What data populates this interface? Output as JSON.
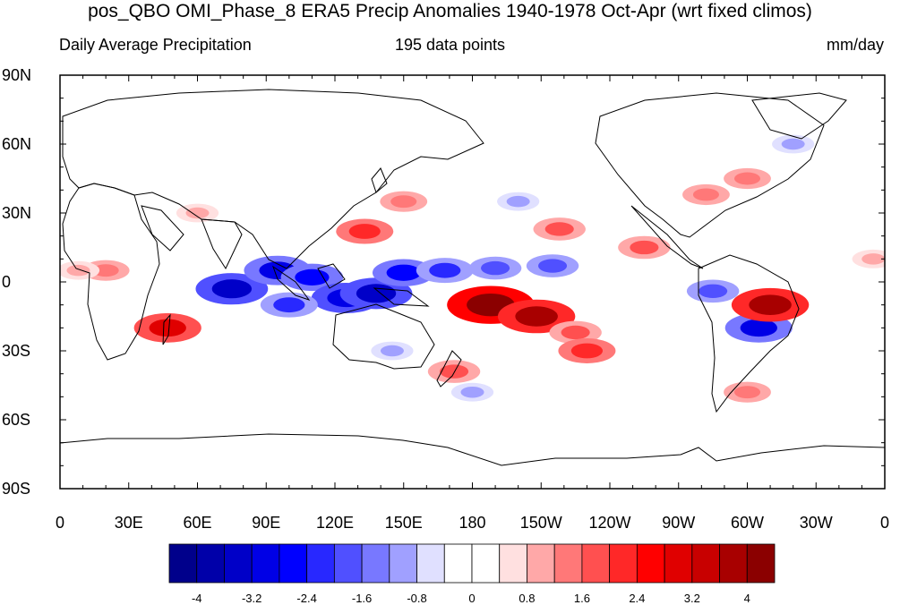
{
  "title": "pos_QBO OMI_Phase_8 ERA5 Precip Anomalies 1940-1978 Oct-Apr (wrt fixed climos)",
  "subtitle_left": "Daily Average Precipitation",
  "subtitle_center": "195 data points",
  "subtitle_right": "mm/day",
  "lat_labels": [
    "90N",
    "60N",
    "30N",
    "0",
    "30S",
    "60S",
    "90S"
  ],
  "lon_labels": [
    "0",
    "30E",
    "60E",
    "90E",
    "120E",
    "150E",
    "180",
    "150W",
    "120W",
    "90W",
    "60W",
    "30W",
    "0"
  ],
  "colorbar": {
    "colors": [
      "#00008b",
      "#0000a9",
      "#0000c8",
      "#0000e6",
      "#0000ff",
      "#2828ff",
      "#5050ff",
      "#7878ff",
      "#a0a0ff",
      "#e0e0ff",
      "#ffffff",
      "#ffffff",
      "#ffe0e0",
      "#ffa8a8",
      "#ff7878",
      "#ff5050",
      "#ff2828",
      "#ff0000",
      "#e00000",
      "#c80000",
      "#a80000",
      "#8b0000"
    ],
    "tick_labels": [
      "-4",
      "-3.2",
      "-2.4",
      "-1.6",
      "-0.8",
      "0",
      "0.8",
      "1.6",
      "2.4",
      "3.2",
      "4"
    ]
  },
  "anomalies": [
    {
      "lon": 75,
      "lat": -3,
      "v": -3.2
    },
    {
      "lon": 95,
      "lat": 5,
      "v": -2.8
    },
    {
      "lon": 110,
      "lat": 2,
      "v": -2.4
    },
    {
      "lon": 125,
      "lat": -7,
      "v": -3.0
    },
    {
      "lon": 138,
      "lat": -5,
      "v": -3.2
    },
    {
      "lon": 150,
      "lat": 4,
      "v": -2.4
    },
    {
      "lon": 168,
      "lat": 5,
      "v": -2.0
    },
    {
      "lon": 190,
      "lat": 6,
      "v": -1.6
    },
    {
      "lon": 215,
      "lat": 7,
      "v": -1.6
    },
    {
      "lon": 285,
      "lat": -4,
      "v": -1.6
    },
    {
      "lon": 305,
      "lat": -20,
      "v": -2.8
    },
    {
      "lon": 100,
      "lat": -10,
      "v": -2.0
    },
    {
      "lon": 188,
      "lat": -10,
      "v": 4.4
    },
    {
      "lon": 208,
      "lat": -15,
      "v": 3.6
    },
    {
      "lon": 225,
      "lat": -22,
      "v": 1.6
    },
    {
      "lon": 47,
      "lat": -20,
      "v": 2.8
    },
    {
      "lon": 310,
      "lat": -10,
      "v": 3.6
    },
    {
      "lon": 133,
      "lat": 22,
      "v": 2.0
    },
    {
      "lon": 218,
      "lat": 23,
      "v": 1.6
    },
    {
      "lon": 255,
      "lat": 15,
      "v": 1.6
    },
    {
      "lon": 282,
      "lat": 38,
      "v": 1.2
    },
    {
      "lon": 172,
      "lat": -39,
      "v": 1.6
    },
    {
      "lon": 150,
      "lat": 35,
      "v": 1.2
    },
    {
      "lon": 20,
      "lat": 5,
      "v": 1.2
    },
    {
      "lon": 8,
      "lat": 5,
      "v": 0.8
    },
    {
      "lon": 230,
      "lat": -30,
      "v": 2.0
    },
    {
      "lon": 300,
      "lat": -48,
      "v": 1.2
    },
    {
      "lon": 60,
      "lat": 30,
      "v": 0.8
    },
    {
      "lon": 300,
      "lat": 45,
      "v": 1.2
    },
    {
      "lon": 320,
      "lat": 60,
      "v": -0.8
    },
    {
      "lon": 355,
      "lat": 10,
      "v": 0.8
    },
    {
      "lon": 180,
      "lat": -48,
      "v": -0.8
    },
    {
      "lon": 200,
      "lat": 35,
      "v": -0.8
    },
    {
      "lon": 145,
      "lat": -30,
      "v": -0.8
    }
  ]
}
